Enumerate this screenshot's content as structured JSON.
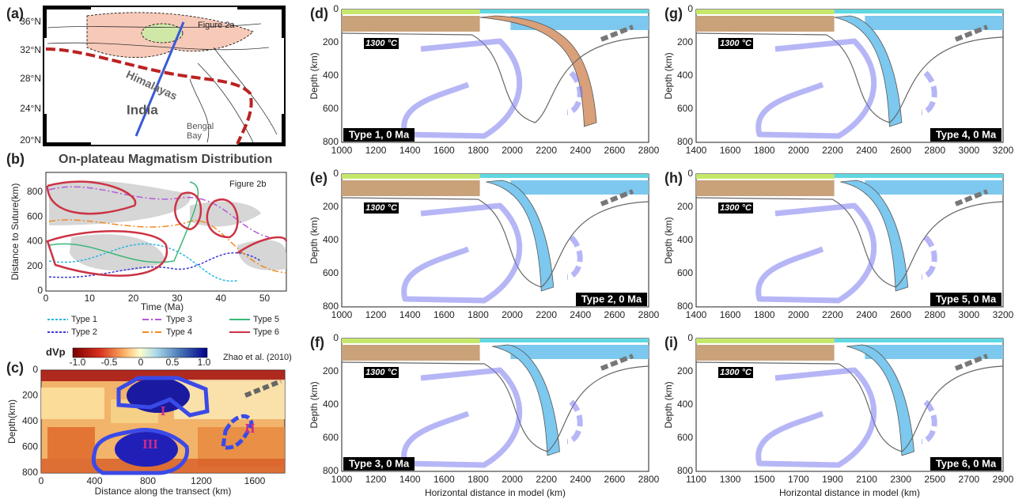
{
  "panels": {
    "a": {
      "label": "(a)",
      "lat_labels": [
        "36°N",
        "32°N",
        "28°N",
        "24°N",
        "20°N"
      ],
      "annotations": [
        "Figure 2a",
        "Himalayas",
        "India",
        "Bengal",
        "Bay"
      ]
    },
    "b": {
      "label": "(b)",
      "title": "On-plateau Magmatism Distribution",
      "y_label": "Distance to Suture(km)",
      "x_label": "Time (Ma)",
      "yticks": [
        "0",
        "200",
        "400",
        "600",
        "800"
      ],
      "xticks": [
        "0",
        "10",
        "20",
        "30",
        "40",
        "50"
      ],
      "annotation": "Figure 2b",
      "legend": [
        {
          "name": "Type 1",
          "color": "#2bb6e0",
          "dash": "3,2"
        },
        {
          "name": "Type 2",
          "color": "#3a3ad8",
          "dash": "3,2"
        },
        {
          "name": "Type 3",
          "color": "#b45ad8",
          "dash": "8,3,2,3"
        },
        {
          "name": "Type 4",
          "color": "#f08a24",
          "dash": "8,3,2,3"
        },
        {
          "name": "Type 5",
          "color": "#3cb878",
          "dash": "none"
        },
        {
          "name": "Type 6",
          "color": "#cc3344",
          "dash": "none"
        }
      ]
    },
    "c": {
      "label": "(c)",
      "colorbar_label": "dVp",
      "colorbar_ticks": [
        "-1.0",
        "-0.5",
        "0",
        "0.5",
        "1.0"
      ],
      "annotation": "Zhao et al. (2010)",
      "anomalies": [
        "I",
        "II",
        "III"
      ],
      "y_label": "Depth(km)",
      "yticks": [
        "0",
        "200",
        "400",
        "600",
        "800"
      ],
      "xticks": [
        "0",
        "400",
        "800",
        "1200",
        "1600"
      ],
      "x_label": "Distance along the transect (km)"
    },
    "models": [
      {
        "label": "(d)",
        "type_label": "Type 1, 0 Ma",
        "isotherm": "1300 °C",
        "y_label": "Depth (km)",
        "yticks": [
          "0",
          "200",
          "400",
          "600",
          "800"
        ],
        "xticks": [
          "1000",
          "1200",
          "1400",
          "1600",
          "1800",
          "2000",
          "2200",
          "2400",
          "2600",
          "2800"
        ]
      },
      {
        "label": "(e)",
        "type_label": "Type 2, 0 Ma",
        "isotherm": "1300 °C",
        "y_label": "Depth (km)",
        "yticks": [
          "0",
          "200",
          "400",
          "600",
          "800"
        ],
        "xticks": [
          "1000",
          "1200",
          "1400",
          "1600",
          "1800",
          "2000",
          "2200",
          "2400",
          "2600",
          "2800"
        ]
      },
      {
        "label": "(f)",
        "type_label": "Type 3, 0 Ma",
        "isotherm": "1300 °C",
        "y_label": "Depth (km)",
        "yticks": [
          "0",
          "200",
          "400",
          "600",
          "800"
        ],
        "xticks": [
          "1000",
          "1200",
          "1400",
          "1600",
          "1800",
          "2000",
          "2200",
          "2400",
          "2600",
          "2800"
        ],
        "x_label": "Horizontal distance in model (km)"
      },
      {
        "label": "(g)",
        "type_label": "Type 4, 0 Ma",
        "isotherm": "1300 °C",
        "y_label": "Depth (km)",
        "yticks": [
          "0",
          "200",
          "400",
          "600",
          "800"
        ],
        "xticks": [
          "1400",
          "1600",
          "1800",
          "2000",
          "2200",
          "2400",
          "2600",
          "2800",
          "3000",
          "3200"
        ]
      },
      {
        "label": "(h)",
        "type_label": "Type 5, 0 Ma",
        "isotherm": "1300 °C",
        "y_label": "Depth (km)",
        "yticks": [
          "0",
          "200",
          "400",
          "600",
          "800"
        ],
        "xticks": [
          "1400",
          "1600",
          "1800",
          "2000",
          "2200",
          "2400",
          "2600",
          "2800",
          "3000",
          "3200"
        ]
      },
      {
        "label": "(i)",
        "type_label": "Type 6, 0 Ma",
        "isotherm": "1300 °C",
        "y_label": "Depth (km)",
        "yticks": [
          "0",
          "200",
          "400",
          "600",
          "800"
        ],
        "xticks": [
          "1100",
          "1300",
          "1500",
          "1700",
          "1900",
          "2100",
          "2300",
          "2500",
          "2700",
          "2900"
        ],
        "x_label": "Horizontal distance in model (km)"
      }
    ]
  }
}
